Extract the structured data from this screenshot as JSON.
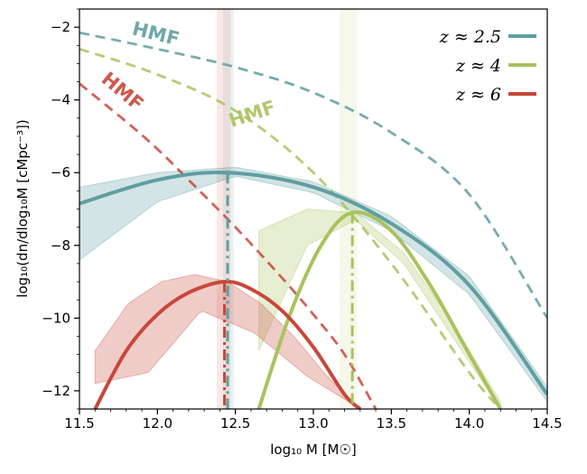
{
  "chart_data": {
    "type": "line",
    "title": "",
    "xlabel": "log₁₀ M [M☉]",
    "ylabel": "log₁₀(dn/dlog₁₀M [cMpc⁻³])",
    "xlim": [
      11.5,
      14.5
    ],
    "ylim": [
      -12.5,
      -1.5
    ],
    "xticks": [
      11.5,
      12.0,
      12.5,
      13.0,
      13.5,
      14.0,
      14.5
    ],
    "xtick_labels": [
      "11.5",
      "12.0",
      "12.5",
      "13.0",
      "13.5",
      "14.0",
      "14.5"
    ],
    "yticks": [
      -12,
      -10,
      -8,
      -6,
      -4,
      -2
    ],
    "ytick_labels": [
      "−12",
      "−10",
      "−8",
      "−6",
      "−4",
      "−2"
    ],
    "grid": false,
    "legend_position": "top-right",
    "hmf_label": "HMF",
    "series": [
      {
        "name": "z ≈ 2.5",
        "legend_label": "z ≈ 2.5",
        "color": "#5f9ea0",
        "peak_x": 12.45,
        "peak_y": -6.0,
        "peak_band": [
          12.42,
          12.49
        ],
        "hmf_label_position": [
          11.98,
          -2.35
        ],
        "hmf_label_angle": 14,
        "model": {
          "x": [
            11.5,
            12.0,
            12.45,
            13.0,
            13.5,
            14.0,
            14.5
          ],
          "y": [
            -6.85,
            -6.2,
            -6.0,
            -6.4,
            -7.4,
            -9.1,
            -12.1
          ]
        },
        "band_upper": [
          -6.4,
          -6.0,
          -5.85,
          -6.25,
          -7.2,
          -8.85,
          -11.9
        ],
        "band_lower": [
          -8.4,
          -6.8,
          -6.1,
          -6.55,
          -7.6,
          -9.35,
          -12.3
        ],
        "hmf": {
          "x": [
            11.5,
            12.0,
            12.5,
            13.0,
            13.5,
            14.0,
            14.5
          ],
          "y": [
            -2.15,
            -2.6,
            -3.1,
            -3.8,
            -4.9,
            -6.6,
            -10.0
          ]
        }
      },
      {
        "name": "z ≈ 4",
        "legend_label": "z ≈ 4",
        "color": "#a9c25d",
        "peak_x": 13.25,
        "peak_y": -7.1,
        "peak_band": [
          13.17,
          13.28
        ],
        "hmf_label_position": [
          12.62,
          -4.55
        ],
        "hmf_label_angle": -18,
        "model": {
          "x": [
            12.65,
            12.85,
            13.05,
            13.25,
            13.5,
            13.75,
            14.0,
            14.2
          ],
          "y": [
            -12.5,
            -9.9,
            -8.0,
            -7.1,
            -7.6,
            -9.1,
            -11.0,
            -12.5
          ]
        },
        "band_upper": [
          -7.6,
          -7.0,
          -7.1,
          -8.2,
          -10.1,
          -12.3
        ],
        "band_lower": [
          -10.9,
          -8.0,
          -7.3,
          -8.5,
          -10.5,
          -12.5
        ],
        "hmf": {
          "x": [
            11.5,
            12.0,
            12.5,
            13.0,
            13.5,
            14.0,
            14.2
          ],
          "y": [
            -2.6,
            -3.3,
            -4.3,
            -6.0,
            -8.5,
            -11.5,
            -12.5
          ]
        }
      },
      {
        "name": "z ≈ 6",
        "legend_label": "z ≈ 6",
        "color": "#c8473a",
        "peak_x": 12.43,
        "peak_y": -9.0,
        "peak_band": [
          12.38,
          12.47
        ],
        "hmf_label_position": [
          11.75,
          -3.9
        ],
        "hmf_label_angle": 40,
        "model": {
          "x": [
            11.6,
            11.8,
            12.0,
            12.2,
            12.43,
            12.6,
            12.8,
            13.0,
            13.2,
            13.3
          ],
          "y": [
            -12.5,
            -10.9,
            -9.9,
            -9.3,
            -9.0,
            -9.2,
            -9.8,
            -10.8,
            -12.1,
            -12.5
          ]
        },
        "band_upper": [
          -10.9,
          -9.6,
          -9.0,
          -8.8,
          -9.0,
          -9.6,
          -10.5,
          -11.6,
          -12.5
        ],
        "band_lower": [
          -11.8,
          -11.5,
          -9.8,
          -10.4,
          -11.6,
          -12.5
        ],
        "hmf": {
          "x": [
            11.5,
            11.8,
            12.0,
            12.2,
            12.5,
            12.8,
            13.0,
            13.2,
            13.4
          ],
          "y": [
            -3.55,
            -4.6,
            -5.35,
            -6.2,
            -7.5,
            -8.9,
            -9.9,
            -11.0,
            -12.5
          ]
        }
      }
    ]
  }
}
